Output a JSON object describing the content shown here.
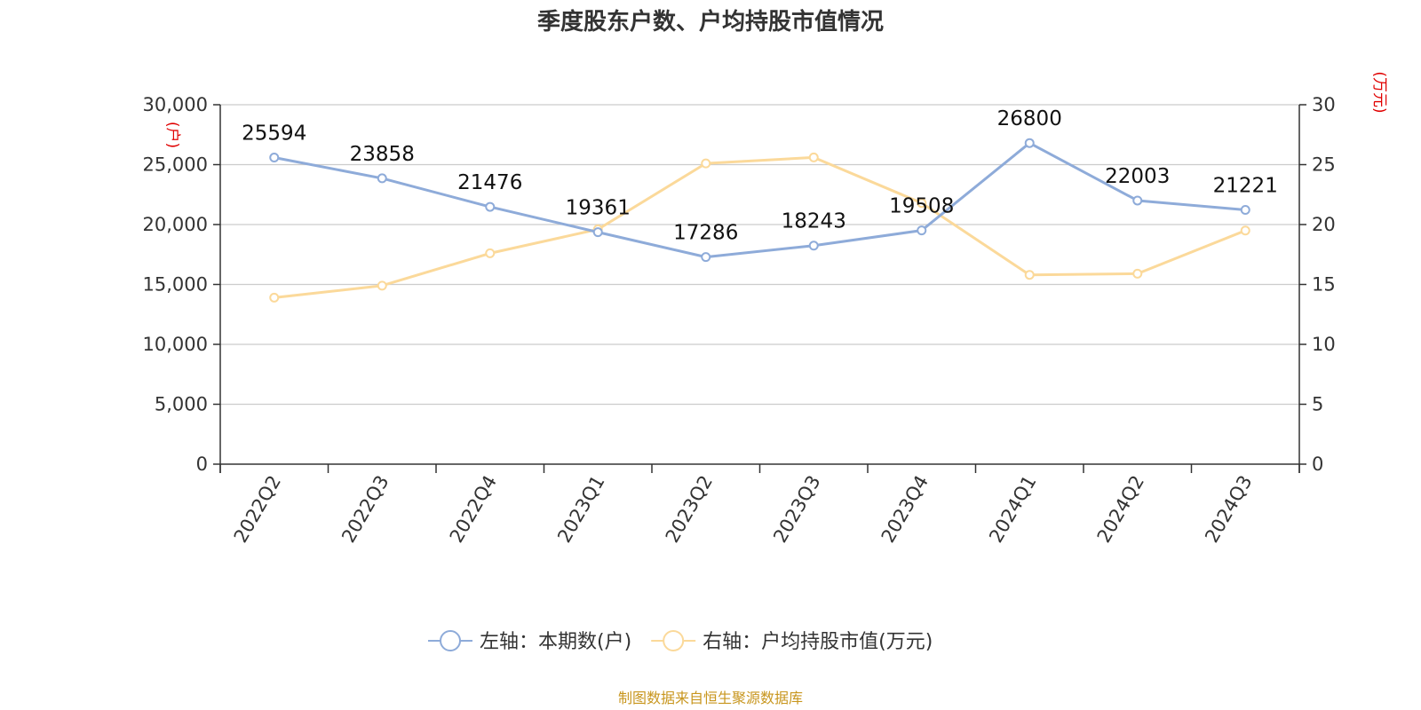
{
  "chart_data": {
    "type": "line",
    "title": "季度股东户数、户均持股市值情况",
    "categories": [
      "2022Q2",
      "2022Q3",
      "2022Q4",
      "2023Q1",
      "2023Q2",
      "2023Q3",
      "2023Q4",
      "2024Q1",
      "2024Q2",
      "2024Q3"
    ],
    "left_axis": {
      "unit": "(户)",
      "ylim": [
        0,
        30000
      ],
      "ticks": [
        "0",
        "5,000",
        "10,000",
        "15,000",
        "20,000",
        "25,000",
        "30,000"
      ]
    },
    "right_axis": {
      "unit": "(万元)",
      "ylim": [
        0,
        30
      ],
      "ticks": [
        "0",
        "5",
        "10",
        "15",
        "20",
        "25",
        "30"
      ]
    },
    "series": [
      {
        "name": "左轴：本期数(户)",
        "axis": "left",
        "color": "#8eabd9",
        "values": [
          25594,
          23858,
          21476,
          19361,
          17286,
          18243,
          19508,
          26800,
          22003,
          21221
        ],
        "labels": [
          "25594",
          "23858",
          "21476",
          "19361",
          "17286",
          "18243",
          "19508",
          "26800",
          "22003",
          "21221"
        ]
      },
      {
        "name": "右轴：户均持股市值(万元)",
        "axis": "right",
        "color": "#fbd99a",
        "values": [
          13.9,
          14.9,
          17.6,
          19.6,
          25.1,
          25.6,
          21.8,
          15.8,
          15.9,
          19.5
        ]
      }
    ],
    "grid": true,
    "legend_position": "bottom"
  },
  "footer": {
    "source": "制图数据来自恒生聚源数据库"
  }
}
